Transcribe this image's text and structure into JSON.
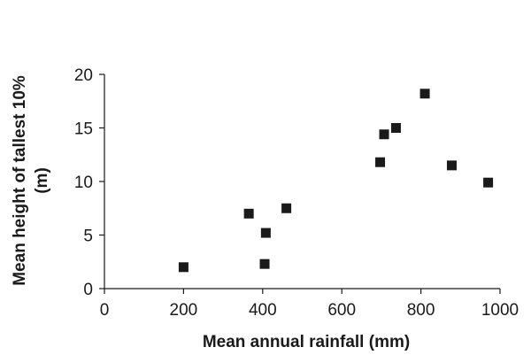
{
  "chart_data": {
    "type": "scatter",
    "xlabel": "Mean annual rainfall (mm)",
    "ylabel_line1": "Mean height of tallest 10%",
    "ylabel_line2": "(m)",
    "xlim": [
      0,
      1000
    ],
    "ylim": [
      0,
      20
    ],
    "xticks": [
      0,
      200,
      400,
      600,
      800,
      1000
    ],
    "yticks": [
      0,
      5,
      10,
      15,
      20
    ],
    "grid": false,
    "marker": "square",
    "marker_color": "#1a1a1a",
    "points": [
      {
        "x": 200,
        "y": 2.0
      },
      {
        "x": 365,
        "y": 7.0
      },
      {
        "x": 405,
        "y": 2.3
      },
      {
        "x": 408,
        "y": 5.2
      },
      {
        "x": 460,
        "y": 7.5
      },
      {
        "x": 697,
        "y": 11.8
      },
      {
        "x": 707,
        "y": 14.4
      },
      {
        "x": 737,
        "y": 15.0
      },
      {
        "x": 810,
        "y": 18.2
      },
      {
        "x": 878,
        "y": 11.5
      },
      {
        "x": 970,
        "y": 9.9
      }
    ]
  }
}
